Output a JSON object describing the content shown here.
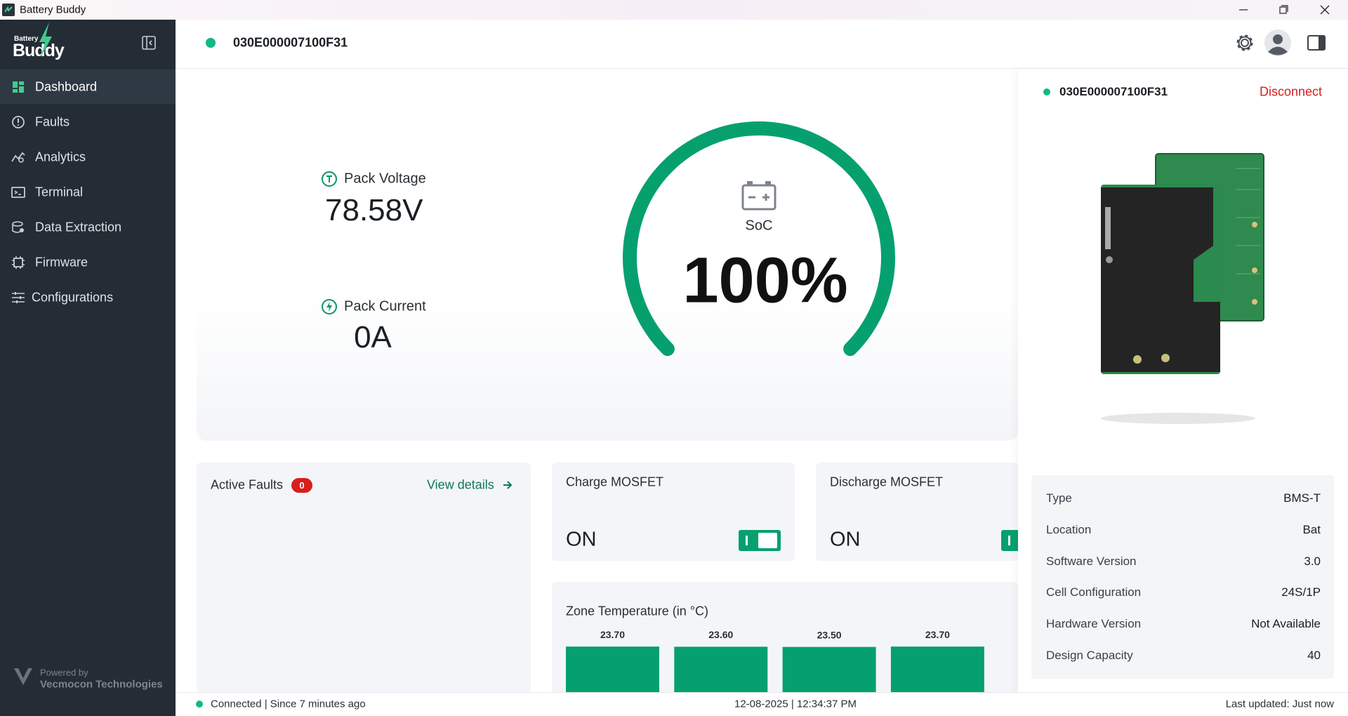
{
  "window": {
    "title": "Battery Buddy"
  },
  "sidebar": {
    "logo": {
      "top": "Battery",
      "main": "Buddy"
    },
    "nav": [
      "Dashboard",
      "Faults",
      "Analytics",
      "Terminal",
      "Data Extraction",
      "Firmware",
      "Configurations"
    ],
    "footer": {
      "line1": "Powered by",
      "line2": "Vecmocon Technologies"
    }
  },
  "header": {
    "device_id": "030E000007100F31"
  },
  "metrics": {
    "voltage": {
      "label": "Pack Voltage",
      "value": "78.58V"
    },
    "current": {
      "label": "Pack Current",
      "value": "0A"
    },
    "soc": {
      "label": "SoC",
      "value": 100,
      "value_label": "100%"
    }
  },
  "faults": {
    "title": "Active Faults",
    "count": "0",
    "link": "View details"
  },
  "charge_mosfet": {
    "title": "Charge MOSFET",
    "state": "ON"
  },
  "discharge_mosfet": {
    "title": "Discharge MOSFET",
    "state": "ON"
  },
  "zone_temperature": {
    "title": "Zone Temperature (in °C)",
    "color": "#06a06e",
    "values": [
      23.7,
      23.6,
      23.5,
      23.7
    ],
    "value_labels": [
      "23.70",
      "23.60",
      "23.50",
      "23.70"
    ]
  },
  "panel": {
    "action": "Disconnect",
    "info": [
      [
        "Type",
        "BMS-T"
      ],
      [
        "Location",
        "Bat"
      ],
      [
        "Software Version",
        "3.0"
      ],
      [
        "Cell Configuration",
        "24S/1P"
      ],
      [
        "Hardware Version",
        "Not Available"
      ],
      [
        "Design Capacity",
        "40"
      ]
    ]
  },
  "status": {
    "connection": "Connected | Since 7 minutes ago",
    "datetime": "12-08-2025 | 12:34:37 PM",
    "updated": "Last updated: Just now"
  }
}
